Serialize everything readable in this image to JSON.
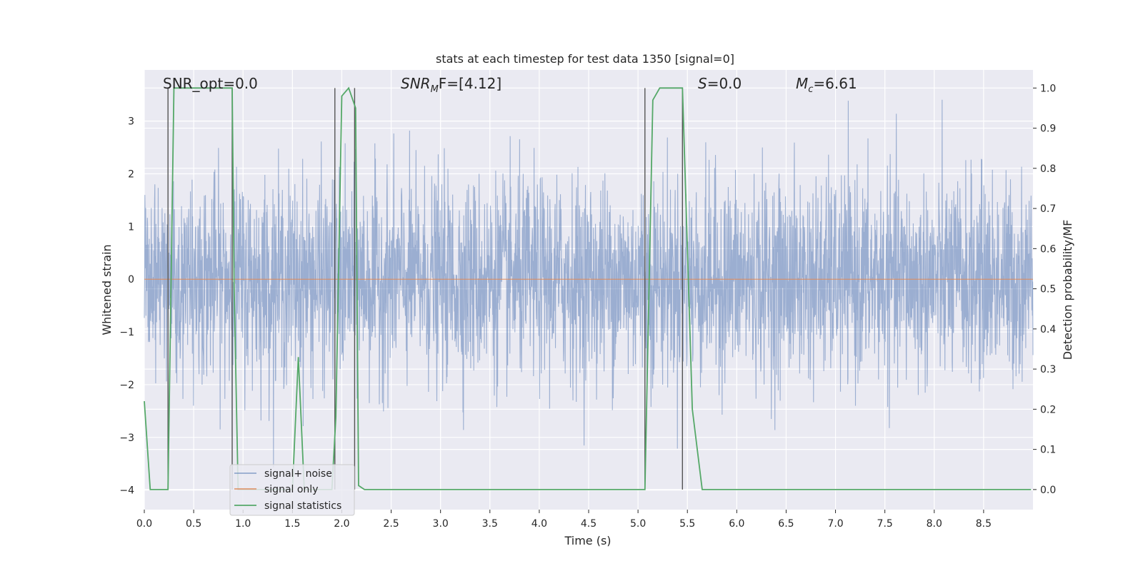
{
  "chart_data": {
    "type": "line",
    "title": "stats at each timestep for test data 1350 [signal=0]",
    "xlabel": "Time (s)",
    "ylabel": "Whitened strain",
    "ylabel_right": "Detection probability/MF",
    "xlim": [
      0,
      9.0
    ],
    "ylim": [
      -4.37,
      3.97
    ],
    "ylim_right": [
      -0.05,
      1.045
    ],
    "x_ticks": [
      "0.0",
      "0.5",
      "1.0",
      "1.5",
      "2.0",
      "2.5",
      "3.0",
      "3.5",
      "4.0",
      "4.5",
      "5.0",
      "5.5",
      "6.0",
      "6.5",
      "7.0",
      "7.5",
      "8.0",
      "8.5"
    ],
    "y_ticks": [
      "3",
      "2",
      "1",
      "0",
      "−1",
      "−2",
      "−3",
      "−4"
    ],
    "y_ticks_right": [
      "1.0",
      "0.9",
      "0.8",
      "0.7",
      "0.6",
      "0.5",
      "0.4",
      "0.3",
      "0.2",
      "0.1",
      "0.0"
    ],
    "grid": true,
    "legend_position": "lower-left",
    "annotations": {
      "snr_opt": "SNR_opt=0.0",
      "snr_mf_main": "SNR",
      "snr_mf_sub": "M",
      "snr_mf_rest": "F=[4.12]",
      "s_main": "S",
      "s_rest": "=0.0",
      "mc_main": "M",
      "mc_sub": "c",
      "mc_rest": "=6.61"
    },
    "series": [
      {
        "name": "signal+ noise",
        "color": "#4c72b0",
        "description_values": "dense gaussian-like whitened noise, |y| mostly < 1.7, peaks to about 3.6 and -3.9",
        "noise_rms": 0.95,
        "seed": 1350
      },
      {
        "name": "signal only",
        "color": "#dd8452",
        "x": [
          0,
          9.0
        ],
        "y": [
          0,
          0
        ]
      },
      {
        "name": "signal statistics",
        "color": "#55a868",
        "axis": "right",
        "x": [
          0.0,
          0.06,
          0.12,
          0.24,
          0.3,
          0.89,
          0.91,
          0.95,
          1.3,
          1.5,
          1.56,
          1.62,
          1.9,
          1.94,
          2.0,
          2.07,
          2.14,
          2.17,
          2.23,
          5.07,
          5.15,
          5.22,
          5.45,
          5.55,
          5.65,
          8.98
        ],
        "y": [
          0.22,
          0.0,
          0.0,
          0.0,
          1.0,
          1.0,
          0.5,
          0.0,
          0.0,
          0.0,
          0.33,
          0.0,
          0.0,
          0.18,
          0.98,
          1.0,
          0.95,
          0.01,
          0.0,
          0.0,
          0.97,
          1.0,
          1.0,
          0.2,
          0.0,
          0.0
        ]
      }
    ],
    "vertical_lines": [
      0.24,
      0.89,
      1.93,
      2.13,
      5.07,
      5.45
    ]
  }
}
